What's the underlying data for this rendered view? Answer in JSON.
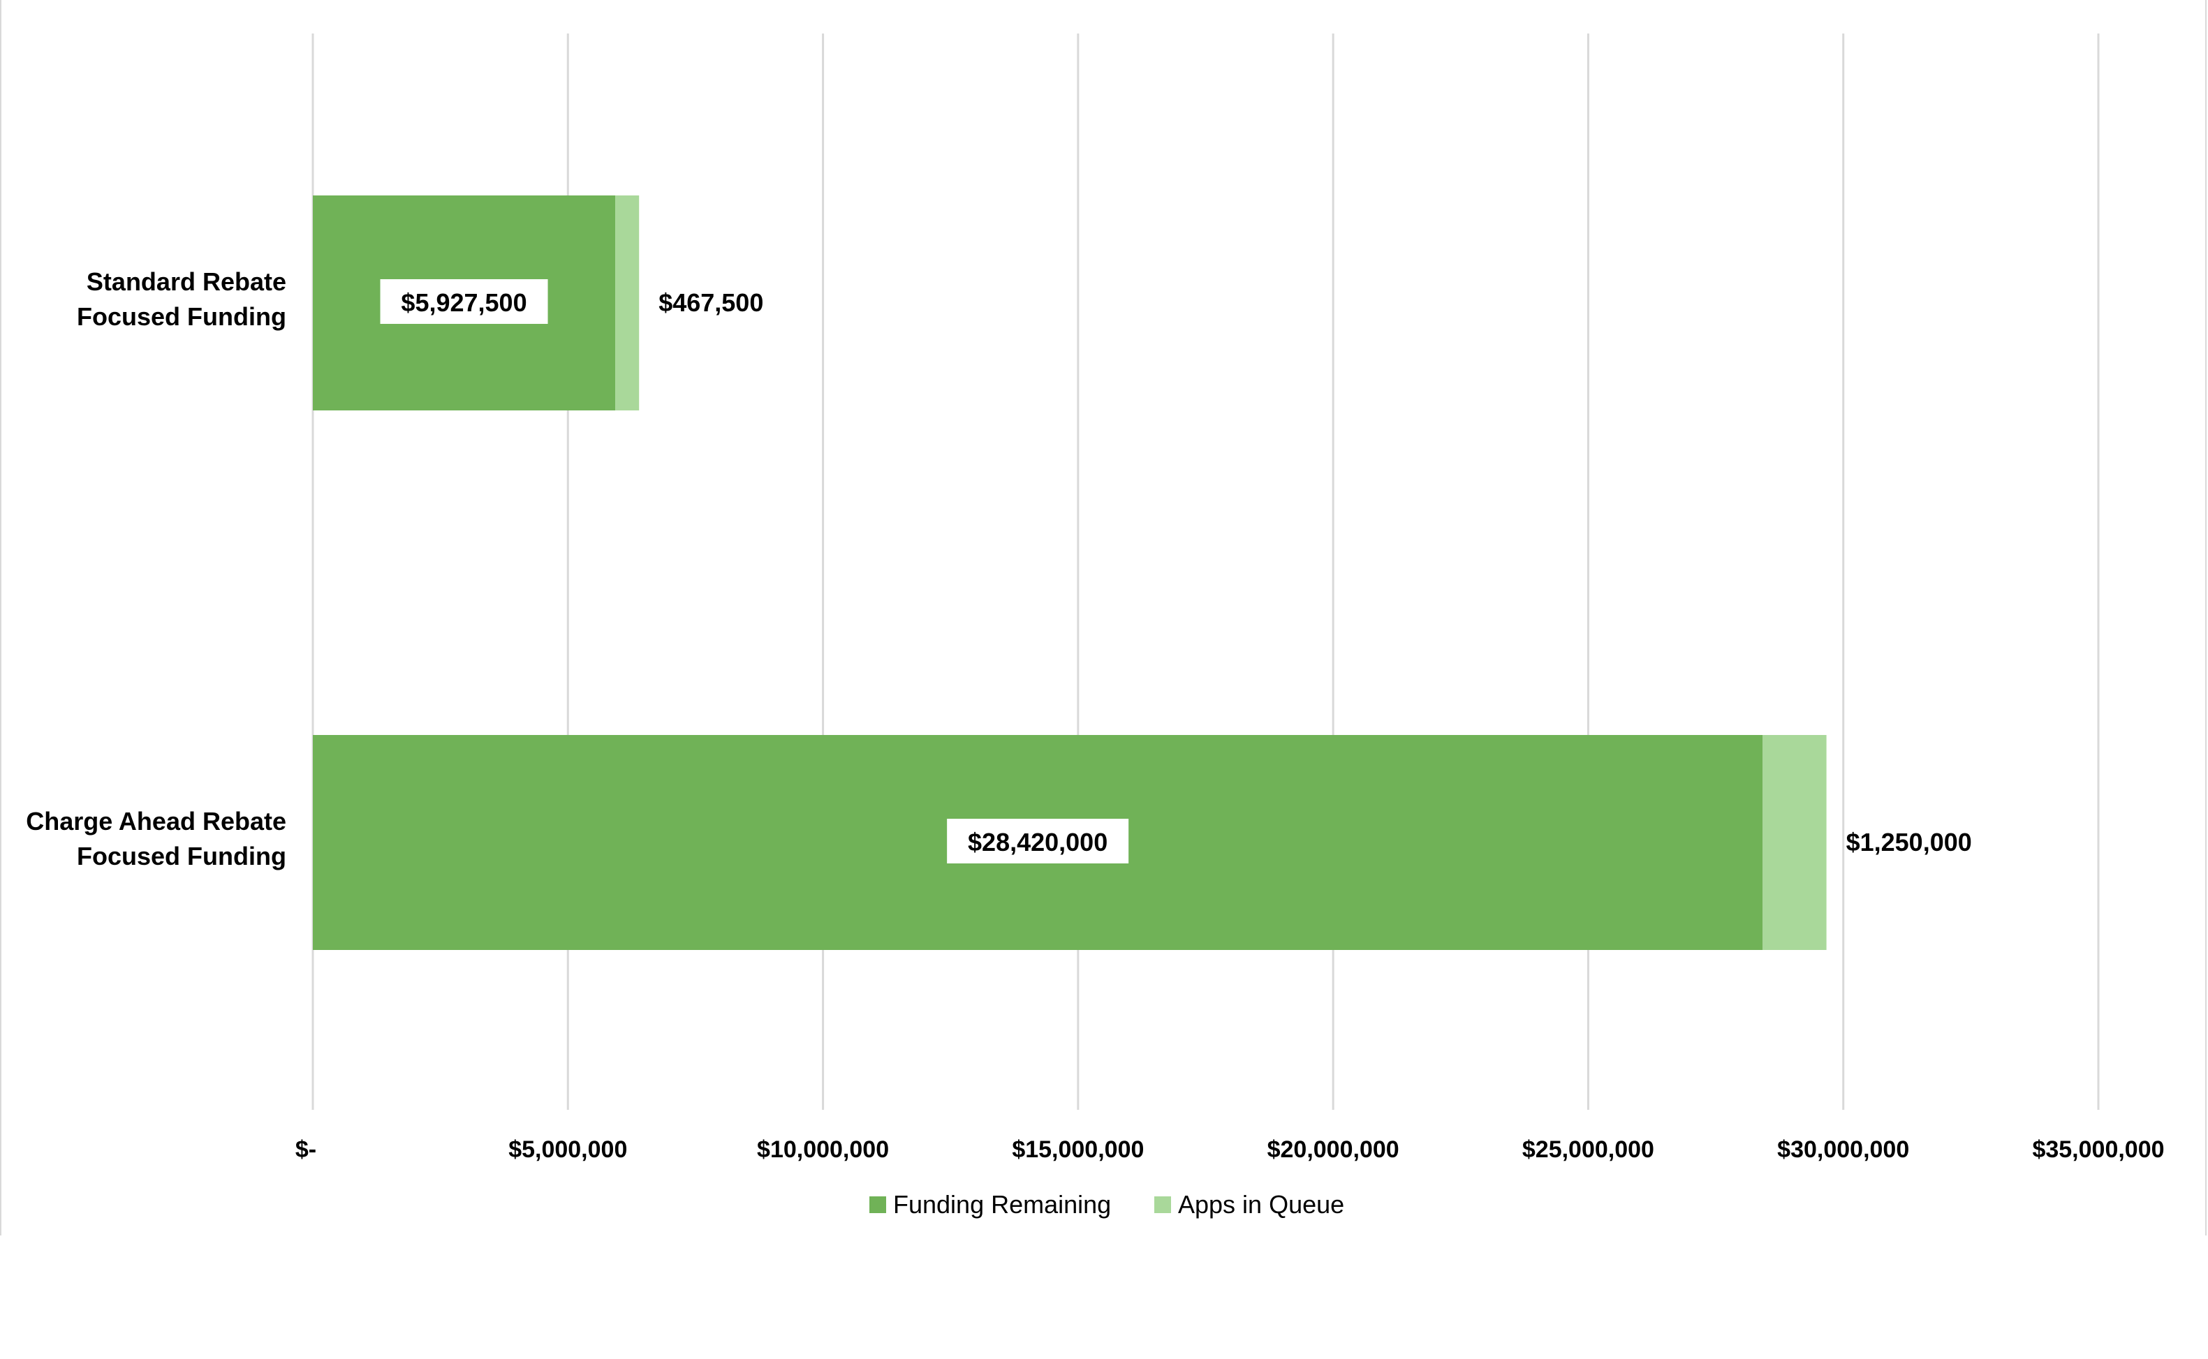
{
  "chart_data": {
    "type": "bar",
    "orientation": "horizontal",
    "stacked": true,
    "categories": [
      "Standard Rebate Focused Funding",
      "Charge Ahead Rebate Focused Funding"
    ],
    "category_lines": [
      [
        "Standard Rebate",
        "Focused Funding"
      ],
      [
        "Charge Ahead Rebate",
        "Focused Funding"
      ]
    ],
    "series": [
      {
        "name": "Funding Remaining",
        "values": [
          5927500,
          28420000
        ],
        "labels": [
          "$5,927,500",
          "$28,420,000"
        ],
        "color": "#70b257"
      },
      {
        "name": "Apps in Queue",
        "values": [
          467500,
          1250000
        ],
        "labels": [
          "$467,500",
          "$1,250,000"
        ],
        "color": "#a9d89a"
      }
    ],
    "xlim": [
      0,
      35000000
    ],
    "xticks": [
      0,
      5000000,
      10000000,
      15000000,
      20000000,
      25000000,
      30000000,
      35000000
    ],
    "xtick_labels": [
      "$-",
      "$5,000,000",
      "$10,000,000",
      "$15,000,000",
      "$20,000,000",
      "$25,000,000",
      "$30,000,000",
      "$35,000,000"
    ],
    "title": "",
    "xlabel": "",
    "ylabel": "",
    "grid": "vertical",
    "legend": "bottom"
  }
}
